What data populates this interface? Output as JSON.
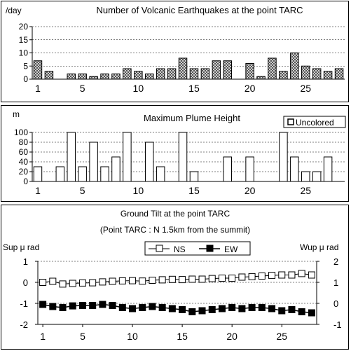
{
  "colors": {
    "axis": "#000000",
    "grid": "#000000",
    "eq_bar_fill": "#9a9a9a",
    "plume_bar_fill": "#ffffff",
    "ns_marker": "#ffffff",
    "ew_marker": "#000000"
  },
  "chart_data": [
    {
      "type": "bar",
      "title": "Number of Volcanic Earthquakes at the point TARC",
      "ylabel": "/day",
      "ylim": [
        0,
        20
      ],
      "yticks": [
        0,
        5,
        10,
        15,
        20
      ],
      "x": [
        1,
        2,
        3,
        4,
        5,
        6,
        7,
        8,
        9,
        10,
        11,
        12,
        13,
        14,
        15,
        16,
        17,
        18,
        19,
        20,
        21,
        22,
        23,
        24,
        25,
        26,
        27,
        28
      ],
      "xtick_labels": [
        "1",
        "5",
        "10",
        "15",
        "20",
        "25"
      ],
      "xtick_values": [
        1,
        5,
        10,
        15,
        20,
        25
      ],
      "values": [
        7,
        3,
        0,
        2,
        2,
        1,
        2,
        2,
        4,
        3,
        2,
        4,
        4,
        8,
        4,
        4,
        7,
        7,
        0,
        6,
        1,
        8,
        3,
        10,
        5,
        4,
        3,
        4
      ],
      "pattern": "checkered",
      "grid": true
    },
    {
      "type": "bar",
      "title": "Maximum Plume Height",
      "ylabel": "m",
      "ylim": [
        0,
        100
      ],
      "yticks": [
        0,
        20,
        40,
        60,
        80,
        100
      ],
      "x": [
        1,
        2,
        3,
        4,
        5,
        6,
        7,
        8,
        9,
        10,
        11,
        12,
        13,
        14,
        15,
        16,
        17,
        18,
        19,
        20,
        21,
        22,
        23,
        24,
        25,
        26,
        27,
        28
      ],
      "xtick_labels": [
        "1",
        "5",
        "10",
        "15",
        "20",
        "25"
      ],
      "xtick_values": [
        1,
        5,
        10,
        15,
        20,
        25
      ],
      "values": [
        30,
        0,
        30,
        100,
        30,
        80,
        30,
        50,
        100,
        0,
        80,
        30,
        0,
        100,
        20,
        0,
        0,
        50,
        0,
        50,
        0,
        0,
        100,
        50,
        20,
        20,
        50,
        0
      ],
      "legend": "Uncolored",
      "legend_position": "top-right",
      "grid": true
    },
    {
      "type": "line",
      "title": "Ground Tilt at the point TARC",
      "subtitle": "(Point TARC : N 1.5km from the summit)",
      "ylabel_left": "Sup μ rad",
      "ylabel_right": "Wup μ rad",
      "ylim_left": [
        -2,
        1
      ],
      "yticks_left": [
        -2,
        -1,
        0,
        1
      ],
      "ylim_right": [
        -1,
        2
      ],
      "yticks_right": [
        -1,
        0,
        1,
        2
      ],
      "x": [
        1,
        2,
        3,
        4,
        5,
        6,
        7,
        8,
        9,
        10,
        11,
        12,
        13,
        14,
        15,
        16,
        17,
        18,
        19,
        20,
        21,
        22,
        23,
        24,
        25,
        26,
        27,
        28
      ],
      "xtick_labels": [
        "1",
        "5",
        "10",
        "15",
        "20",
        "25"
      ],
      "xtick_values": [
        1,
        5,
        10,
        15,
        20,
        25
      ],
      "series": [
        {
          "name": "NS",
          "marker": "open-square",
          "values": [
            0.0,
            0.05,
            -0.08,
            -0.05,
            -0.03,
            -0.02,
            0.02,
            0.05,
            0.07,
            0.08,
            0.06,
            0.1,
            0.12,
            0.14,
            0.13,
            0.15,
            0.15,
            0.18,
            0.2,
            0.2,
            0.25,
            0.27,
            0.3,
            0.33,
            0.35,
            0.35,
            0.42,
            0.35
          ]
        },
        {
          "name": "EW",
          "marker": "filled-square",
          "values": [
            -1.05,
            -1.15,
            -1.2,
            -1.12,
            -1.1,
            -1.1,
            -1.05,
            -1.1,
            -1.2,
            -1.25,
            -1.2,
            -1.15,
            -1.2,
            -1.25,
            -1.3,
            -1.4,
            -1.35,
            -1.3,
            -1.25,
            -1.2,
            -1.25,
            -1.2,
            -1.2,
            -1.25,
            -1.35,
            -1.3,
            -1.4,
            -1.45
          ]
        }
      ],
      "legend_position": "top-center",
      "grid": true
    }
  ]
}
